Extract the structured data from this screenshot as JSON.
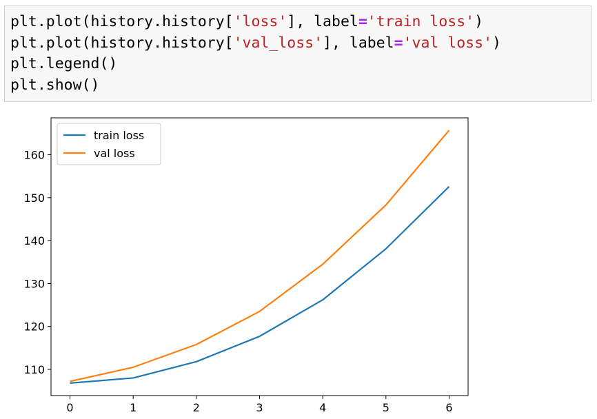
{
  "code_cell": {
    "lines": [
      [
        {
          "t": "plt.plot(history.history[",
          "c": "plain"
        },
        {
          "t": "'loss'",
          "c": "str"
        },
        {
          "t": "], label",
          "c": "plain"
        },
        {
          "t": "=",
          "c": "op"
        },
        {
          "t": "'train loss'",
          "c": "str"
        },
        {
          "t": ")",
          "c": "plain"
        }
      ],
      [
        {
          "t": "plt.plot(history.history[",
          "c": "plain"
        },
        {
          "t": "'val_loss'",
          "c": "str"
        },
        {
          "t": "], label",
          "c": "plain"
        },
        {
          "t": "=",
          "c": "op"
        },
        {
          "t": "'val loss'",
          "c": "str"
        },
        {
          "t": ")",
          "c": "plain"
        }
      ],
      [
        {
          "t": "plt.legend()",
          "c": "plain"
        }
      ],
      [
        {
          "t": "plt.show()",
          "c": "plain"
        }
      ]
    ]
  },
  "chart_data": {
    "type": "line",
    "x": [
      0,
      1,
      2,
      3,
      4,
      5,
      6
    ],
    "series": [
      {
        "name": "train loss",
        "color": "#1f77b4",
        "values": [
          106.8,
          108.0,
          111.8,
          117.7,
          126.2,
          138.1,
          152.6
        ]
      },
      {
        "name": "val loss",
        "color": "#ff7f0e",
        "values": [
          107.2,
          110.5,
          115.8,
          123.5,
          134.5,
          148.3,
          165.7
        ]
      }
    ],
    "xticks": [
      0,
      1,
      2,
      3,
      4,
      5,
      6
    ],
    "yticks": [
      110,
      120,
      130,
      140,
      150,
      160
    ],
    "xlim": [
      -0.3,
      6.3
    ],
    "ylim": [
      103.9,
      168.6
    ],
    "legend_loc": "upper left",
    "grid": false
  }
}
